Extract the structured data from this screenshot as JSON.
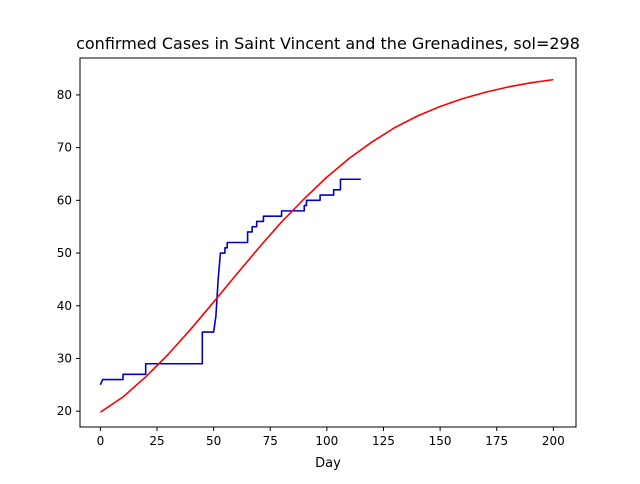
{
  "chart_data": {
    "type": "line",
    "title": "confirmed Cases in Saint Vincent and the Grenadines, sol=298",
    "xlabel": "Day",
    "ylabel": "",
    "xlim": [
      -9,
      210
    ],
    "ylim": [
      17,
      87
    ],
    "xticks": [
      0,
      25,
      50,
      75,
      100,
      125,
      150,
      175,
      200
    ],
    "yticks": [
      20,
      30,
      40,
      50,
      60,
      70,
      80
    ],
    "grid": false,
    "series": [
      {
        "color": "#0000cc",
        "x": [
          0,
          1,
          1,
          10,
          10,
          19,
          19,
          20,
          20,
          45,
          45,
          50,
          50,
          51,
          52,
          53,
          54,
          54,
          55,
          55,
          56,
          56,
          65,
          65,
          66,
          66,
          67,
          67,
          69,
          69,
          72,
          72,
          80,
          80,
          90,
          90,
          91,
          91,
          94,
          94,
          97,
          97,
          103,
          103,
          106,
          106,
          115
        ],
        "y": [
          25,
          26,
          26,
          26,
          27,
          27,
          27,
          27,
          29,
          29,
          35,
          35,
          35,
          38,
          45,
          50,
          50,
          50,
          50,
          51,
          51,
          52,
          52,
          54,
          54,
          54,
          54,
          55,
          55,
          56,
          56,
          57,
          57,
          58,
          58,
          59,
          59,
          60,
          60,
          60,
          60,
          61,
          61,
          62,
          62,
          64,
          64
        ]
      },
      {
        "color": "#ff0000",
        "x": [
          0,
          10,
          20,
          30,
          40,
          50,
          60,
          70,
          80,
          90,
          100,
          110,
          120,
          130,
          140,
          150,
          160,
          170,
          180,
          190,
          200
        ],
        "y": [
          19.8,
          22.7,
          26.5,
          30.8,
          35.6,
          40.7,
          45.9,
          51.0,
          55.9,
          60.3,
          64.4,
          68.0,
          71.1,
          73.8,
          76.0,
          77.8,
          79.3,
          80.5,
          81.5,
          82.3,
          82.9
        ]
      }
    ]
  }
}
